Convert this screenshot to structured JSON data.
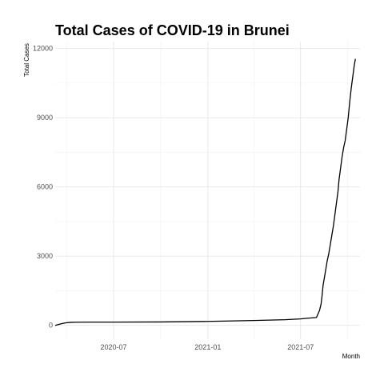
{
  "chart_data": {
    "type": "line",
    "title": "Total Cases of COVID-19 in Brunei",
    "xlabel": "Month",
    "ylabel": "Total Cases",
    "x_type": "date",
    "xlim": [
      "2020-03-09",
      "2021-10-25"
    ],
    "ylim": [
      -600,
      12300
    ],
    "x_ticks": [
      {
        "value": "2020-07-01",
        "label": "2020-07"
      },
      {
        "value": "2021-01-01",
        "label": "2021-01"
      },
      {
        "value": "2021-07-01",
        "label": "2021-07"
      }
    ],
    "x_minor": [
      "2020-04-01",
      "2020-10-01",
      "2021-04-01",
      "2021-10-01"
    ],
    "y_ticks": [
      0,
      3000,
      6000,
      9000,
      12000
    ],
    "y_minor": [
      1500,
      4500,
      7500,
      10500
    ],
    "grid": true,
    "legend": "none",
    "series": [
      {
        "x": [
          "2020-03-09",
          "2020-03-16",
          "2020-03-23",
          "2020-03-30",
          "2020-04-08",
          "2020-04-20",
          "2020-05-15",
          "2020-07-01",
          "2020-10-01",
          "2021-01-01",
          "2021-04-01",
          "2021-06-01",
          "2021-07-01",
          "2021-07-15",
          "2021-08-01",
          "2021-08-07",
          "2021-08-10",
          "2021-08-12",
          "2021-08-14",
          "2021-08-16",
          "2021-08-19",
          "2021-08-22",
          "2021-08-25",
          "2021-08-28",
          "2021-08-31",
          "2021-09-03",
          "2021-09-06",
          "2021-09-09",
          "2021-09-12",
          "2021-09-14",
          "2021-09-17",
          "2021-09-20",
          "2021-09-23",
          "2021-09-26",
          "2021-09-29",
          "2021-10-02",
          "2021-10-05",
          "2021-10-08",
          "2021-10-11",
          "2021-10-14",
          "2021-10-16"
        ],
        "y": [
          0,
          40,
          80,
          110,
          130,
          138,
          141,
          141,
          148,
          172,
          210,
          245,
          280,
          310,
          340,
          650,
          920,
          1300,
          1750,
          2000,
          2400,
          2800,
          3100,
          3500,
          3900,
          4300,
          4800,
          5300,
          5800,
          6300,
          6800,
          7300,
          7700,
          8000,
          8500,
          9000,
          9700,
          10300,
          10800,
          11300,
          11550
        ]
      }
    ]
  }
}
